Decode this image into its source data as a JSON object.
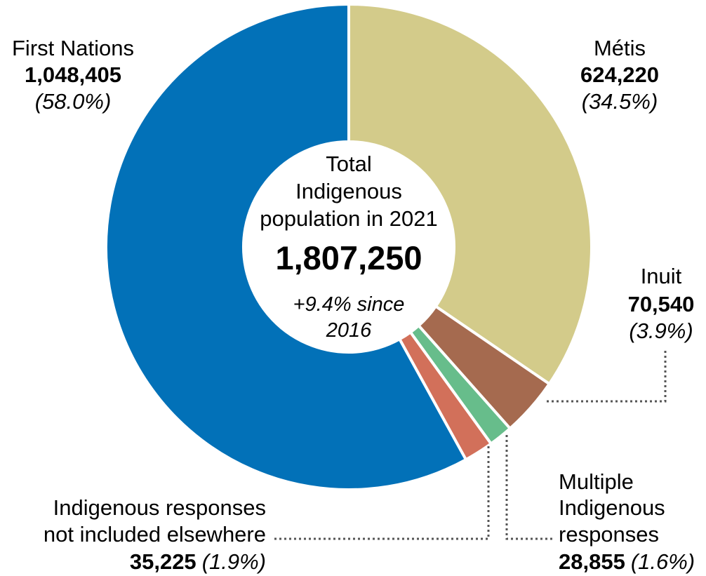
{
  "chart_data": {
    "type": "pie",
    "variant": "donut",
    "center": {
      "title_lines": [
        "Total",
        "Indigenous",
        "population in 2021"
      ],
      "total": "1,807,250",
      "change_lines": [
        "+9.4% since",
        "2016"
      ]
    },
    "slices": [
      {
        "name": "Métis",
        "name_lines": [
          "Métis"
        ],
        "value": 624220,
        "value_label": "624,220",
        "percent": 34.5,
        "percent_label": "(34.5%)",
        "color": "#d3cb8a"
      },
      {
        "name": "Inuit",
        "name_lines": [
          "Inuit"
        ],
        "value": 70540,
        "value_label": "70,540",
        "percent": 3.9,
        "percent_label": "(3.9%)",
        "color": "#a56a4f"
      },
      {
        "name": "Multiple Indigenous responses",
        "name_lines": [
          "Multiple",
          "Indigenous",
          "responses"
        ],
        "value": 28855,
        "value_label": "28,855",
        "percent": 1.6,
        "percent_label": "(1.6%)",
        "color": "#67bd8b"
      },
      {
        "name": "Indigenous responses not included elsewhere",
        "name_lines": [
          "Indigenous responses",
          "not included elsewhere"
        ],
        "value": 35225,
        "value_label": "35,225",
        "percent": 1.9,
        "percent_label": "(1.9%)",
        "color": "#d2705a"
      },
      {
        "name": "First Nations",
        "name_lines": [
          "First Nations"
        ],
        "value": 1048405,
        "value_label": "1,048,405",
        "percent": 58.0,
        "percent_label": "(58.0%)",
        "color": "#0271b8"
      }
    ]
  }
}
